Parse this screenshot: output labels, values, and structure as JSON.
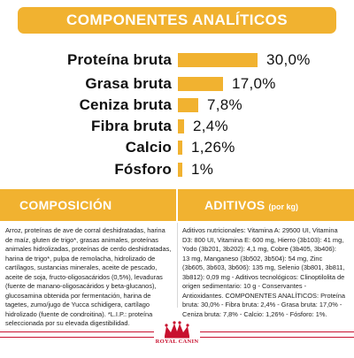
{
  "banner_title": "COMPONENTES ANALÍTICOS",
  "nutrients": [
    {
      "label": "Proteína bruta",
      "value": "30,0%",
      "percent": 30.0
    },
    {
      "label": "Grasa bruta",
      "value": "17,0%",
      "percent": 17.0
    },
    {
      "label": "Ceniza bruta",
      "value": "7,8%",
      "percent": 7.8
    },
    {
      "label": "Fibra bruta",
      "value": "2,4%",
      "percent": 2.4
    },
    {
      "label": "Calcio",
      "value": "1,26%",
      "percent": 1.26
    },
    {
      "label": "Fósforo",
      "value": "1%",
      "percent": 1.0
    }
  ],
  "composition": {
    "title": "COMPOSICIÓN",
    "text": "Arroz, proteínas de ave de corral deshidratadas, harina de maíz, gluten de trigo*, grasas animales, proteínas animales hidrolizadas, proteínas de cerdo deshidratadas, harina de trigo*, pulpa de remolacha, hidrolizado de cartílagos, sustancias minerales, aceite de pescado, aceite de soja, fructo-oligosacáridos (0,5%), levaduras (fuente de manano-oligosacáridos y beta-glucanos), glucosamina obtenida por fermentación, harina de tagetes, zumo/jugo de Yucca schidigera, cartílago hidrolizado (fuente de condroitina). *L.I.P.: proteína seleccionada por su elevada digestibilidad."
  },
  "additives": {
    "title": "ADITIVOS",
    "unit": "(por kg)",
    "text": "Aditivos nutricionales: Vitamina A: 29500 UI, Vitamina D3: 800 UI, Vitamina E: 600 mg, Hierro (3b103): 41 mg, Yodo (3b201, 3b202): 4,1 mg, Cobre (3b405, 3b406): 13 mg, Manganeso (3b502, 3b504): 54 mg, Zinc (3b605, 3b603, 3b606): 135 mg, Selenio (3b801, 3b811, 3b812): 0,09 mg - Aditivos tecnológicos: Clinoptilolita de origen sedimentario: 10 g - Conservantes - Antioxidantes. COMPONENTES ANALÍTICOS: Proteína bruta: 30,0% - Fibra bruta: 2,4% - Grasa bruta: 17,0% - Ceniza bruta: 7,8% - Calcio: 1,26% - Fósforo: 1%."
  },
  "footer": {
    "logo": "crown-logo",
    "brand_text": "ROYAL CANIN",
    "accent_color": "#c8102e"
  },
  "colors": {
    "accent": "#f1b230",
    "text": "#111111",
    "brand_red": "#c8102e"
  }
}
